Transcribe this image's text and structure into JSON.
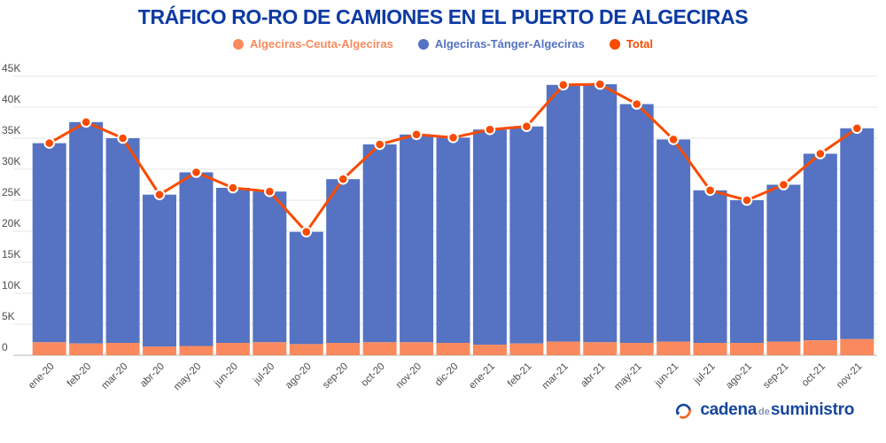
{
  "title": "TRÁFICO RO-RO DE CAMIONES EN EL PUERTO DE ALGECIRAS",
  "legend": [
    {
      "label": "Algeciras-Ceuta-Algeciras",
      "color": "#fa8a5e",
      "bold": false
    },
    {
      "label": "Algeciras-Tánger-Algeciras",
      "color": "#5573c2",
      "bold": false
    },
    {
      "label": "Total",
      "color": "#f94b01",
      "bold": true
    }
  ],
  "chart_data": {
    "type": "bar",
    "subtype": "stacked-bars-with-line",
    "categories": [
      "ene-20",
      "feb-20",
      "mar-20",
      "abr-20",
      "may-20",
      "jun-20",
      "jul-20",
      "ago-20",
      "sep-20",
      "oct-20",
      "nov-20",
      "dic-20",
      "ene-21",
      "feb-21",
      "mar-21",
      "abr-21",
      "may-21",
      "jun-21",
      "jul-21",
      "ago-21",
      "sep-21",
      "oct-21",
      "nov-21"
    ],
    "series": [
      {
        "name": "Algeciras-Ceuta-Algeciras",
        "type": "bar",
        "stack": "traffic",
        "color": "#fa8a5e",
        "values": [
          2100,
          1900,
          2000,
          1400,
          1500,
          2000,
          2100,
          1800,
          2000,
          2100,
          2100,
          2000,
          1700,
          1900,
          2200,
          2100,
          2000,
          2200,
          2000,
          2000,
          2200,
          2400,
          2600
        ]
      },
      {
        "name": "Algeciras-Tánger-Algeciras",
        "type": "bar",
        "stack": "traffic",
        "color": "#5573c2",
        "values": [
          32100,
          35700,
          33000,
          24500,
          28000,
          25000,
          24300,
          18100,
          26400,
          31900,
          33500,
          33100,
          34700,
          35000,
          41400,
          41600,
          38500,
          32600,
          24600,
          23000,
          25300,
          30100,
          34000
        ]
      },
      {
        "name": "Total",
        "type": "line",
        "color": "#f94b01",
        "values": [
          34200,
          37600,
          35000,
          25900,
          29500,
          27000,
          26400,
          19900,
          28400,
          34000,
          35600,
          35100,
          36400,
          36900,
          43600,
          43700,
          40500,
          34800,
          26600,
          25000,
          27500,
          32500,
          36600
        ]
      }
    ],
    "title": "TRÁFICO RO-RO DE CAMIONES EN EL PUERTO DE ALGECIRAS",
    "xlabel": "",
    "ylabel": "",
    "ylim": [
      0,
      45000
    ],
    "ytick_interval": 5000,
    "ytick_labels": [
      "0",
      "5K",
      "10K",
      "15K",
      "20K",
      "25K",
      "30K",
      "35K",
      "40K",
      "45K"
    ],
    "grid": true,
    "legend_position": "top"
  },
  "colors": {
    "title": "#0c3aa3",
    "gridline": "#e6e6e6",
    "axis_line": "#cfcfcf",
    "tick_text": "#4d4d4d",
    "point_ring": "#ffffff"
  },
  "footer": {
    "logo": {
      "cadena": "cadena",
      "de": "de",
      "suministro": "suministro"
    }
  }
}
